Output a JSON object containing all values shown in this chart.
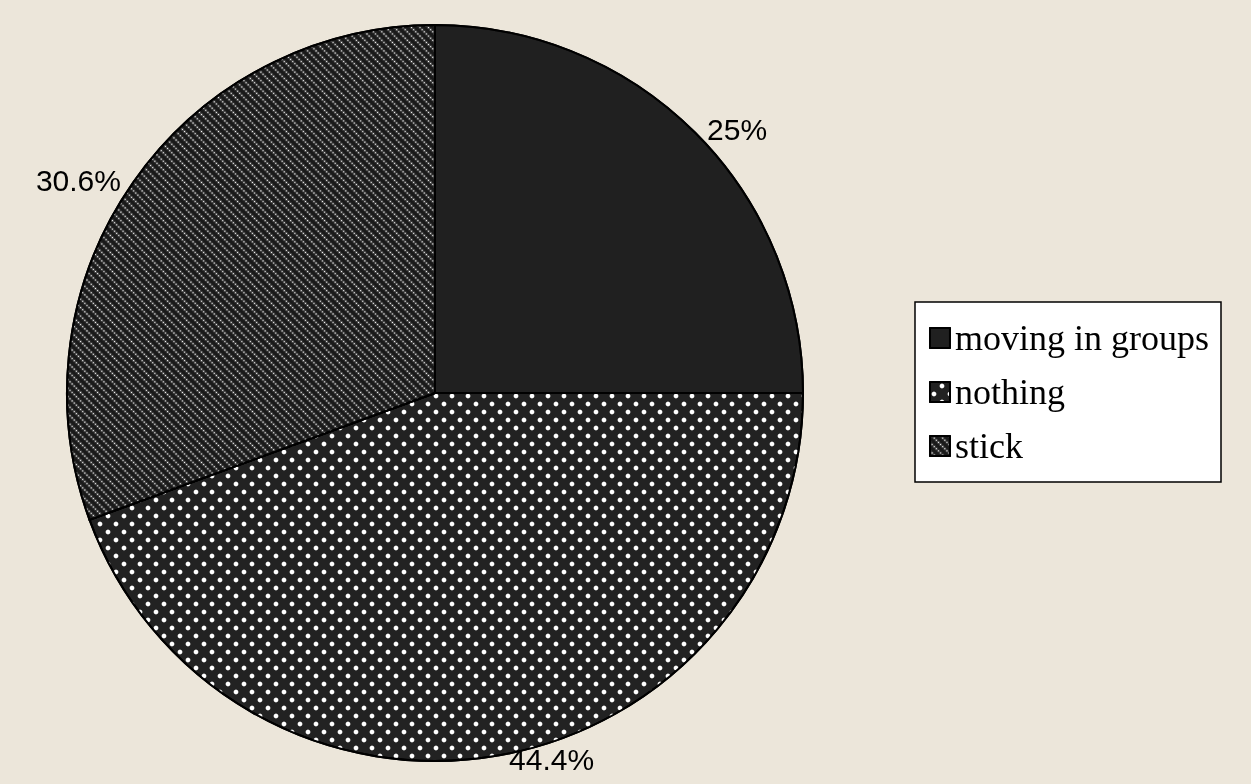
{
  "chart_data": {
    "type": "pie",
    "categories": [
      "moving in groups",
      "nothing",
      "stick"
    ],
    "values": [
      25,
      44.4,
      30.6
    ],
    "colors": [
      "#111111",
      "#222222",
      "#1a1a1a"
    ],
    "value_labels": [
      "25%",
      "44.4%",
      "30.6%"
    ],
    "legend": "right"
  }
}
